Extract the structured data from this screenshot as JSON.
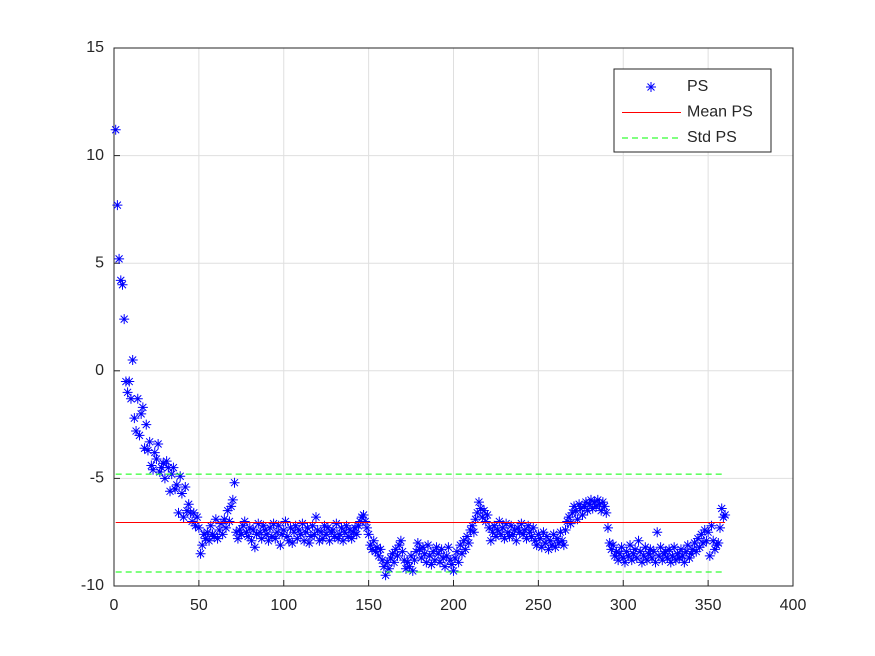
{
  "chart_data": {
    "type": "scatter",
    "x": [
      1,
      2,
      3,
      4,
      5,
      6,
      7,
      8,
      9,
      10,
      11,
      12,
      13,
      14,
      15,
      16,
      17,
      18,
      19,
      20,
      21,
      22,
      23,
      24,
      25,
      26,
      27,
      28,
      29,
      30,
      31,
      32,
      33,
      34,
      35,
      36,
      37,
      38,
      39,
      40,
      41,
      42,
      43,
      44,
      45,
      46,
      47,
      48,
      49,
      50,
      51,
      52,
      53,
      54,
      55,
      56,
      57,
      58,
      59,
      60,
      61,
      62,
      63,
      64,
      65,
      66,
      67,
      68,
      69,
      70,
      71,
      72,
      73,
      74,
      75,
      76,
      77,
      78,
      79,
      80,
      81,
      82,
      83,
      84,
      85,
      86,
      87,
      88,
      89,
      90,
      91,
      92,
      93,
      94,
      95,
      96,
      97,
      98,
      99,
      100,
      101,
      102,
      103,
      104,
      105,
      106,
      107,
      108,
      109,
      110,
      111,
      112,
      113,
      114,
      115,
      116,
      117,
      118,
      119,
      120,
      121,
      122,
      123,
      124,
      125,
      126,
      127,
      128,
      129,
      130,
      131,
      132,
      133,
      134,
      135,
      136,
      137,
      138,
      139,
      140,
      141,
      142,
      143,
      144,
      145,
      146,
      147,
      148,
      149,
      150,
      151,
      152,
      153,
      154,
      155,
      156,
      157,
      158,
      159,
      160,
      161,
      162,
      163,
      164,
      165,
      166,
      167,
      168,
      169,
      170,
      171,
      172,
      173,
      174,
      175,
      176,
      177,
      178,
      179,
      180,
      181,
      182,
      183,
      184,
      185,
      186,
      187,
      188,
      189,
      190,
      191,
      192,
      193,
      194,
      195,
      196,
      197,
      198,
      199,
      200,
      201,
      202,
      203,
      204,
      205,
      206,
      207,
      208,
      209,
      210,
      211,
      212,
      213,
      214,
      215,
      216,
      217,
      218,
      219,
      220,
      221,
      222,
      223,
      224,
      225,
      226,
      227,
      228,
      229,
      230,
      231,
      232,
      233,
      234,
      235,
      236,
      237,
      238,
      239,
      240,
      241,
      242,
      243,
      244,
      245,
      246,
      247,
      248,
      249,
      250,
      251,
      252,
      253,
      254,
      255,
      256,
      257,
      258,
      259,
      260,
      261,
      262,
      263,
      264,
      265,
      266,
      267,
      268,
      269,
      270,
      271,
      272,
      273,
      274,
      275,
      276,
      277,
      278,
      279,
      280,
      281,
      282,
      283,
      284,
      285,
      286,
      287,
      288,
      289,
      290,
      291,
      292,
      293,
      294,
      295,
      296,
      297,
      298,
      299,
      300,
      301,
      302,
      303,
      304,
      305,
      306,
      307,
      308,
      309,
      310,
      311,
      312,
      313,
      314,
      315,
      316,
      317,
      318,
      319,
      320,
      321,
      322,
      323,
      324,
      325,
      326,
      327,
      328,
      329,
      330,
      331,
      332,
      333,
      334,
      335,
      336,
      337,
      338,
      339,
      340,
      341,
      342,
      343,
      344,
      345,
      346,
      347,
      348,
      349,
      350,
      351,
      352,
      353,
      354,
      355,
      356,
      357,
      358,
      359,
      360
    ],
    "series": [
      {
        "name": "PS",
        "color": "#0000ff",
        "style": "marker",
        "values": [
          11.2,
          7.7,
          5.2,
          4.2,
          4.0,
          2.4,
          -0.5,
          -1.0,
          -0.5,
          -1.3,
          0.5,
          -2.2,
          -2.8,
          -1.3,
          -3.0,
          -2.0,
          -1.7,
          -3.6,
          -2.5,
          -3.7,
          -3.3,
          -4.4,
          -4.6,
          -3.8,
          -4.1,
          -3.4,
          -4.7,
          -4.5,
          -4.3,
          -5.0,
          -4.2,
          -4.5,
          -5.6,
          -4.8,
          -4.5,
          -5.5,
          -5.3,
          -6.6,
          -4.9,
          -5.7,
          -6.8,
          -5.4,
          -6.5,
          -6.2,
          -6.6,
          -7.0,
          -6.6,
          -7.2,
          -6.8,
          -7.3,
          -8.5,
          -8.1,
          -7.6,
          -7.8,
          -7.5,
          -7.9,
          -7.2,
          -7.6,
          -7.7,
          -6.9,
          -7.8,
          -7.4,
          -7.1,
          -7.6,
          -6.9,
          -7.3,
          -6.5,
          -7.0,
          -6.3,
          -6.0,
          -5.2,
          -7.5,
          -7.8,
          -7.4,
          -7.6,
          -7.2,
          -7.0,
          -7.5,
          -7.7,
          -7.3,
          -7.9,
          -7.4,
          -8.2,
          -7.6,
          -7.1,
          -7.5,
          -7.8,
          -7.2,
          -7.4,
          -7.6,
          -7.9,
          -7.3,
          -7.7,
          -7.1,
          -7.8,
          -7.5,
          -7.2,
          -8.1,
          -7.6,
          -7.4,
          -7.0,
          -7.7,
          -7.9,
          -7.3,
          -8.0,
          -7.5,
          -7.2,
          -7.8,
          -7.4,
          -7.6,
          -7.1,
          -7.9,
          -7.5,
          -7.3,
          -8.0,
          -7.7,
          -7.2,
          -7.6,
          -6.8,
          -7.4,
          -7.9,
          -7.5,
          -7.8,
          -7.2,
          -7.6,
          -7.3,
          -7.9,
          -7.5,
          -7.4,
          -7.7,
          -7.1,
          -7.8,
          -7.6,
          -7.3,
          -7.9,
          -7.5,
          -7.2,
          -7.7,
          -7.4,
          -7.8,
          -7.5,
          -7.3,
          -7.6,
          -7.2,
          -7.0,
          -6.8,
          -6.7,
          -7.0,
          -7.3,
          -7.6,
          -8.1,
          -8.3,
          -7.9,
          -8.4,
          -8.2,
          -8.6,
          -8.3,
          -8.8,
          -9.1,
          -9.5,
          -8.9,
          -9.2,
          -8.7,
          -8.5,
          -8.9,
          -8.3,
          -8.6,
          -8.1,
          -7.9,
          -8.4,
          -8.8,
          -9.2,
          -8.9,
          -9.1,
          -8.6,
          -9.3,
          -8.8,
          -8.4,
          -8.0,
          -8.3,
          -8.7,
          -8.2,
          -8.5,
          -8.9,
          -8.1,
          -8.6,
          -9.0,
          -8.4,
          -8.8,
          -8.2,
          -8.5,
          -8.9,
          -8.3,
          -8.7,
          -9.1,
          -8.6,
          -8.2,
          -8.8,
          -9.0,
          -9.3,
          -8.7,
          -8.4,
          -8.9,
          -8.1,
          -8.5,
          -7.9,
          -8.3,
          -7.7,
          -8.0,
          -7.4,
          -7.2,
          -7.5,
          -6.9,
          -6.6,
          -6.1,
          -6.4,
          -6.8,
          -6.5,
          -7.0,
          -6.7,
          -7.3,
          -7.9,
          -7.5,
          -7.2,
          -7.7,
          -7.4,
          -7.0,
          -7.6,
          -7.3,
          -7.8,
          -7.1,
          -7.5,
          -7.7,
          -7.2,
          -7.6,
          -7.4,
          -7.9,
          -7.3,
          -7.5,
          -7.1,
          -7.6,
          -7.4,
          -7.8,
          -7.2,
          -7.5,
          -7.7,
          -7.3,
          -7.9,
          -8.1,
          -7.6,
          -7.8,
          -8.2,
          -7.5,
          -8.0,
          -7.7,
          -8.3,
          -7.9,
          -8.1,
          -7.6,
          -8.2,
          -7.8,
          -8.0,
          -7.5,
          -7.9,
          -8.1,
          -7.4,
          -7.0,
          -6.8,
          -7.1,
          -6.6,
          -6.3,
          -6.5,
          -6.9,
          -6.2,
          -6.4,
          -6.7,
          -6.3,
          -6.1,
          -6.5,
          -6.2,
          -6.0,
          -6.4,
          -6.1,
          -6.3,
          -6.0,
          -6.2,
          -6.5,
          -6.1,
          -6.3,
          -6.6,
          -7.3,
          -8.0,
          -8.3,
          -8.1,
          -8.6,
          -8.4,
          -8.8,
          -8.5,
          -8.2,
          -8.7,
          -8.9,
          -8.4,
          -8.6,
          -8.1,
          -8.8,
          -8.5,
          -8.3,
          -8.7,
          -7.9,
          -8.4,
          -8.9,
          -8.6,
          -8.2,
          -8.8,
          -8.5,
          -8.3,
          -8.7,
          -8.4,
          -8.9,
          -7.5,
          -8.6,
          -8.2,
          -8.8,
          -8.5,
          -8.4,
          -8.7,
          -8.3,
          -8.9,
          -8.6,
          -8.2,
          -8.8,
          -8.5,
          -8.7,
          -8.3,
          -8.6,
          -8.9,
          -8.4,
          -8.1,
          -8.7,
          -8.5,
          -8.3,
          -8.0,
          -8.4,
          -7.8,
          -8.2,
          -7.6,
          -8.0,
          -7.4,
          -7.9,
          -7.5,
          -8.6,
          -7.2,
          -7.9,
          -8.3,
          -8.1,
          -8.0,
          -7.3,
          -6.4,
          -6.8,
          -6.7
        ]
      },
      {
        "name": "Mean PS",
        "color": "#ff0000",
        "style": "solid",
        "x": [
          1,
          360
        ],
        "values": [
          -7.05,
          -7.05
        ]
      },
      {
        "name": "Std PS",
        "color": "#00ff00",
        "style": "dashed",
        "x": [
          1,
          360,
          1,
          1,
          360
        ],
        "values": [
          -4.8,
          -4.8,
          null,
          -9.35,
          -9.35
        ]
      }
    ],
    "xlim": [
      0,
      400
    ],
    "xticks": [
      0,
      50,
      100,
      150,
      200,
      250,
      300,
      350,
      400
    ],
    "ylim": [
      -10,
      15
    ],
    "yticks": [
      -10,
      -5,
      0,
      5,
      10,
      15
    ],
    "grid": true,
    "legend": "northeast"
  }
}
